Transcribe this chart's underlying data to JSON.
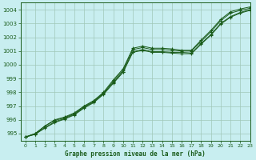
{
  "xlabel": "Graphe pression niveau de la mer (hPa)",
  "xlim": [
    -0.5,
    23
  ],
  "ylim": [
    994.5,
    1004.5
  ],
  "yticks": [
    995,
    996,
    997,
    998,
    999,
    1000,
    1001,
    1002,
    1003,
    1004
  ],
  "xticks": [
    0,
    1,
    2,
    3,
    4,
    5,
    6,
    7,
    8,
    9,
    10,
    11,
    12,
    13,
    14,
    15,
    16,
    17,
    18,
    19,
    20,
    21,
    22,
    23
  ],
  "background_color": "#c8eef0",
  "grid_color": "#a0c8b8",
  "line_color": "#1a5c1a",
  "series": [
    [
      994.75,
      995.0,
      995.55,
      996.0,
      996.2,
      996.5,
      997.0,
      997.4,
      998.0,
      998.9,
      999.7,
      1001.2,
      1001.35,
      1001.2,
      1001.2,
      1001.15,
      1001.05,
      1001.05,
      1001.8,
      1002.5,
      1003.3,
      1003.85,
      1004.05,
      1004.2
    ],
    [
      994.75,
      995.0,
      995.55,
      995.95,
      996.15,
      996.45,
      996.95,
      997.35,
      997.95,
      998.8,
      999.6,
      1001.1,
      1001.25,
      1001.1,
      1001.1,
      1001.05,
      1001.0,
      1001.0,
      1001.7,
      1002.4,
      1003.2,
      1003.75,
      1003.95,
      1004.1
    ],
    [
      994.75,
      994.95,
      995.45,
      995.85,
      996.1,
      996.4,
      996.9,
      997.3,
      997.9,
      998.7,
      999.5,
      1000.95,
      1001.1,
      1000.95,
      1000.95,
      1000.9,
      1000.9,
      1000.85,
      1001.55,
      1002.2,
      1003.0,
      1003.5,
      1003.8,
      1004.0
    ],
    [
      994.75,
      994.95,
      995.4,
      995.8,
      996.05,
      996.35,
      996.85,
      997.25,
      997.85,
      998.65,
      999.45,
      1000.9,
      1001.05,
      1000.9,
      1000.9,
      1000.85,
      1000.8,
      1000.8,
      1001.5,
      1002.15,
      1002.95,
      1003.45,
      1003.75,
      1003.95
    ]
  ]
}
